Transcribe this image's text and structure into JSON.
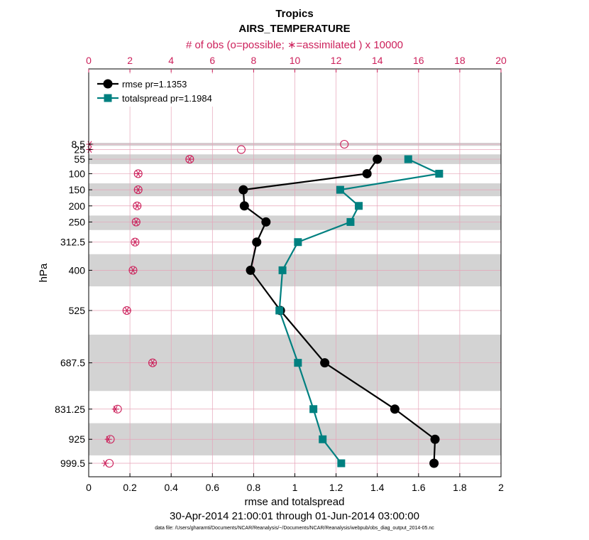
{
  "chart_data": {
    "type": "line",
    "title": "Tropics",
    "subtitle": "AIRS_TEMPERATURE",
    "xlabel": "rmse and totalspread",
    "ylabel": "hPa",
    "top_xlabel": "# of obs (o=possible; ∗=assimilated ) x 10000",
    "xlim": [
      0,
      2
    ],
    "top_xlim": [
      0,
      20
    ],
    "x_ticks": [
      "0",
      "0.2",
      "0.4",
      "0.6",
      "0.8",
      "1",
      "1.2",
      "1.4",
      "1.6",
      "1.8",
      "2"
    ],
    "top_ticks": [
      "0",
      "2",
      "4",
      "6",
      "8",
      "10",
      "12",
      "14",
      "16",
      "18",
      "20"
    ],
    "levels": [
      8.5,
      25,
      55,
      100,
      150,
      200,
      250,
      312.5,
      400,
      525,
      687.5,
      831.25,
      925,
      999.5
    ],
    "level_labels": [
      "8.5",
      "25",
      "55",
      "100",
      "150",
      "200",
      "250",
      "312.5",
      "400",
      "525",
      "687.5",
      "831.25",
      "925",
      "999.5"
    ],
    "series": [
      {
        "name": "rmse pr=1.1353",
        "color": "#000000",
        "marker": "circle",
        "points": [
          [
            1.4,
            55
          ],
          [
            1.35,
            100
          ],
          [
            0.75,
            150
          ],
          [
            0.755,
            200
          ],
          [
            0.86,
            250
          ],
          [
            0.815,
            312.5
          ],
          [
            0.785,
            400
          ],
          [
            0.93,
            525
          ],
          [
            1.145,
            687.5
          ],
          [
            1.485,
            831.25
          ],
          [
            1.68,
            925
          ],
          [
            1.675,
            999.5
          ]
        ]
      },
      {
        "name": "totalspread pr=1.1984",
        "color": "#008080",
        "marker": "square",
        "points": [
          [
            1.55,
            55
          ],
          [
            1.7,
            100
          ],
          [
            1.22,
            150
          ],
          [
            1.31,
            200
          ],
          [
            1.27,
            250
          ],
          [
            1.015,
            312.5
          ],
          [
            0.94,
            400
          ],
          [
            0.925,
            525
          ],
          [
            1.015,
            687.5
          ],
          [
            1.09,
            831.25
          ],
          [
            1.135,
            925
          ],
          [
            1.225,
            999.5
          ]
        ]
      }
    ],
    "obs_possible": [
      [
        12.4,
        8.5
      ],
      [
        7.4,
        25
      ],
      [
        4.9,
        55
      ],
      [
        2.4,
        100
      ],
      [
        2.4,
        150
      ],
      [
        2.35,
        200
      ],
      [
        2.3,
        250
      ],
      [
        2.25,
        312.5
      ],
      [
        2.15,
        400
      ],
      [
        1.85,
        525
      ],
      [
        3.1,
        687.5
      ],
      [
        1.4,
        831.25
      ],
      [
        1.05,
        925
      ],
      [
        1.0,
        999.5
      ]
    ],
    "obs_assimilated": [
      [
        0.05,
        8.5
      ],
      [
        0.05,
        25
      ],
      [
        4.9,
        55
      ],
      [
        2.4,
        100
      ],
      [
        2.4,
        150
      ],
      [
        2.35,
        200
      ],
      [
        2.3,
        250
      ],
      [
        2.25,
        312.5
      ],
      [
        2.15,
        400
      ],
      [
        1.85,
        525
      ],
      [
        3.1,
        687.5
      ],
      [
        1.3,
        831.25
      ],
      [
        0.95,
        925
      ],
      [
        0.8,
        999.5
      ]
    ],
    "shaded_layers_hPa": [
      [
        4,
        6
      ],
      [
        9,
        11
      ],
      [
        40,
        70
      ],
      [
        130,
        170
      ],
      [
        230,
        275
      ],
      [
        350,
        450
      ],
      [
        600,
        775
      ],
      [
        875,
        975
      ]
    ],
    "date_range": "30-Apr-2014 21:00:01 through 01-Jun-2014 03:00:00",
    "data_file": "data file: /Users/gharamti/Documents/NCAR/Reanalysis/~/Documents/NCAR/Reanalysis/webpub/obs_diag_output_2014-05.nc",
    "colors": {
      "obs": "#cc1f5a",
      "band": "#d3d3d3",
      "grid": "#e6a3b8"
    }
  }
}
